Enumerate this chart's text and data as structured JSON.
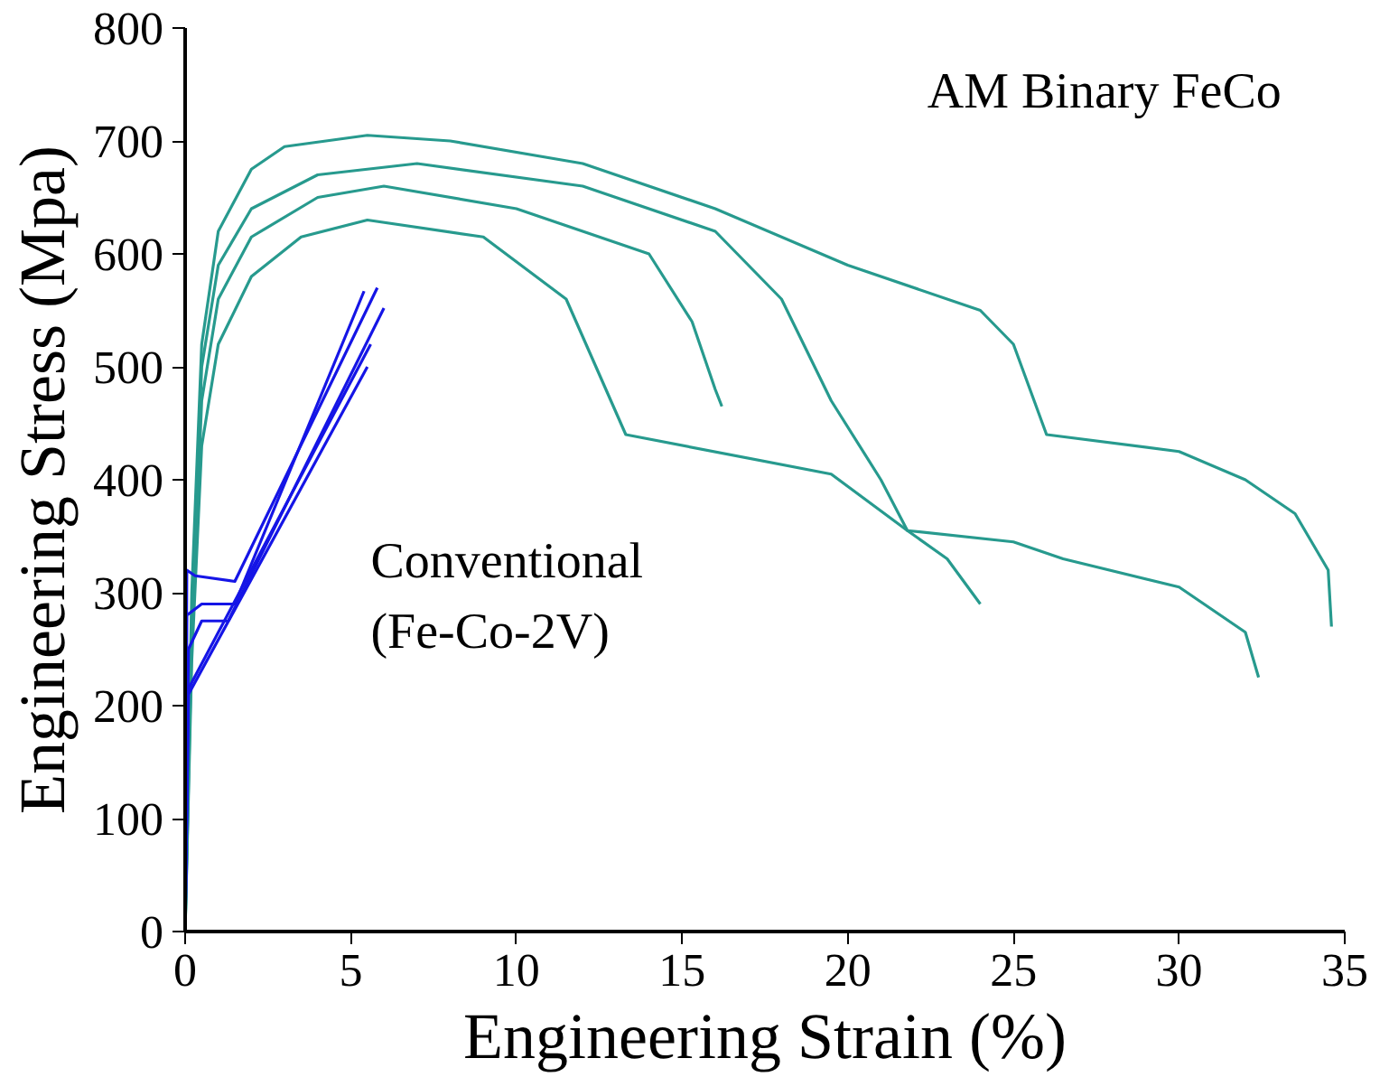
{
  "chart_data": {
    "type": "line",
    "xlabel": "Engineering Strain (%)",
    "ylabel": "Engineering Stress (Mpa)",
    "xlim": [
      0,
      35
    ],
    "ylim": [
      0,
      800
    ],
    "xticks": [
      0,
      5,
      10,
      15,
      20,
      25,
      30,
      35
    ],
    "yticks": [
      0,
      100,
      200,
      300,
      400,
      500,
      600,
      700,
      800
    ],
    "grid": false,
    "marker": "none",
    "line_style": "solid",
    "annotations": [
      "AM Binary FeCo",
      "Conventional\n(Fe-Co-2V)"
    ],
    "series": [
      {
        "color": "#279a8e",
        "x": [
          0,
          0.2,
          0.5,
          1,
          2,
          3,
          5.5,
          8,
          12,
          16,
          20,
          24,
          25,
          26,
          30,
          32,
          33.5,
          34.5,
          34.6
        ],
        "values": [
          0,
          300,
          520,
          620,
          675,
          695,
          705,
          700,
          680,
          640,
          590,
          550,
          520,
          440,
          425,
          400,
          370,
          320,
          270
        ]
      },
      {
        "color": "#279a8e",
        "x": [
          0,
          0.2,
          0.5,
          1,
          2,
          4,
          7,
          12,
          16,
          18,
          19.5,
          21,
          21.8,
          23,
          24
        ],
        "values": [
          0,
          280,
          500,
          590,
          640,
          670,
          680,
          660,
          620,
          560,
          470,
          400,
          355,
          330,
          290
        ]
      },
      {
        "color": "#279a8e",
        "x": [
          0,
          0.2,
          0.5,
          1,
          2,
          4,
          6,
          10,
          14,
          15.3,
          16,
          16.2
        ],
        "values": [
          0,
          260,
          470,
          560,
          615,
          650,
          660,
          640,
          600,
          540,
          480,
          465
        ]
      },
      {
        "color": "#279a8e",
        "x": [
          0,
          0.2,
          0.5,
          1,
          2,
          3.5,
          5.5,
          9,
          11.5,
          13.3,
          19.5,
          21.8,
          25,
          26.5,
          30,
          32,
          32.4
        ],
        "values": [
          0,
          240,
          430,
          520,
          580,
          615,
          630,
          615,
          560,
          440,
          405,
          355,
          345,
          330,
          305,
          265,
          225
        ]
      },
      {
        "color": "#1515e6",
        "x": [
          0,
          0.05,
          0.3,
          1.5,
          5.8
        ],
        "values": [
          0,
          320,
          315,
          310,
          570
        ]
      },
      {
        "color": "#1515e6",
        "x": [
          0,
          0.05,
          0.5,
          1.5,
          5.4
        ],
        "values": [
          0,
          280,
          290,
          290,
          567
        ]
      },
      {
        "color": "#1515e6",
        "x": [
          0,
          0.1,
          0.5,
          1.3,
          6
        ],
        "values": [
          0,
          250,
          275,
          275,
          552
        ]
      },
      {
        "color": "#1515e6",
        "x": [
          0,
          0.1,
          5.6
        ],
        "values": [
          0,
          215,
          520
        ]
      },
      {
        "color": "#1515e6",
        "x": [
          0,
          0.1,
          5.5
        ],
        "values": [
          0,
          210,
          500
        ]
      }
    ]
  }
}
